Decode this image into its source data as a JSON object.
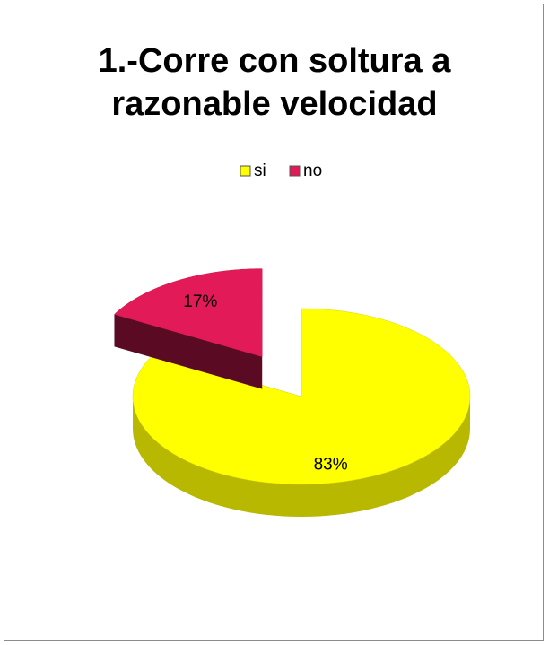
{
  "chart_data": {
    "type": "pie",
    "title": "1.-Corre con soltura a\nrazonable velocidad",
    "categories": [
      "si",
      "no"
    ],
    "values": [
      83,
      17
    ],
    "value_labels": [
      "83%",
      "17%"
    ],
    "colors": [
      "#ffff00",
      "#e31a58"
    ],
    "legend": "top",
    "exploded": [
      false,
      true
    ],
    "three_d": true
  }
}
